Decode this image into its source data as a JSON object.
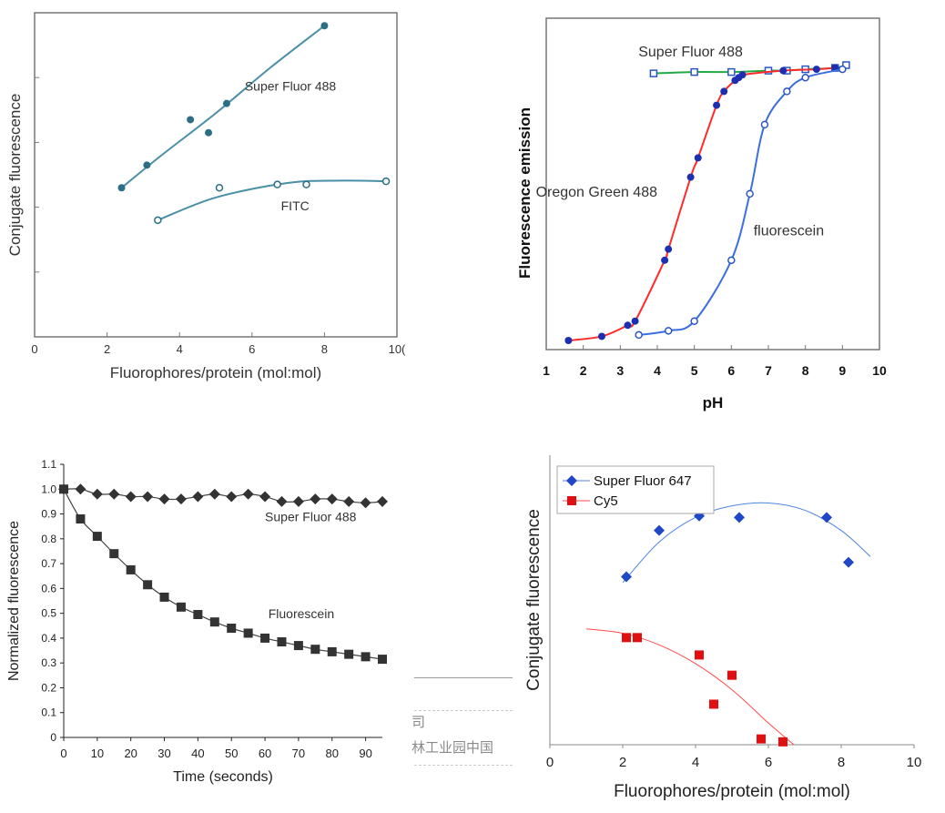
{
  "chart_data": [
    {
      "type": "scatter",
      "xlabel": "Fluorophores/protein (mol:mol)",
      "ylabel": "Conjugate fluorescence",
      "xlim": [
        0,
        10
      ],
      "ylim": [
        0,
        10
      ],
      "x_ticks": [
        "0",
        "2",
        "4",
        "6",
        "8",
        "10("
      ],
      "grid": false,
      "series": [
        {
          "name": "Super Fluor 488",
          "marker": "filled-circle",
          "color": "#2b6f86",
          "line_color": "#4a8fa6",
          "points": [
            [
              2.4,
              4.6
            ],
            [
              3.1,
              5.3
            ],
            [
              4.3,
              6.7
            ],
            [
              4.8,
              6.3
            ],
            [
              5.3,
              7.2
            ],
            [
              8.0,
              9.6
            ]
          ],
          "fit": [
            [
              2.4,
              4.6
            ],
            [
              3.5,
              5.6
            ],
            [
              5.0,
              6.9
            ],
            [
              6.5,
              8.3
            ],
            [
              8.0,
              9.6
            ]
          ]
        },
        {
          "name": "FITC",
          "marker": "open-circle",
          "color": "#2b6f86",
          "line_color": "#4a8fa6",
          "points": [
            [
              3.4,
              3.6
            ],
            [
              5.1,
              4.6
            ],
            [
              6.7,
              4.7
            ],
            [
              7.5,
              4.7
            ],
            [
              9.7,
              4.8
            ]
          ],
          "fit": [
            [
              3.4,
              3.6
            ],
            [
              5.0,
              4.3
            ],
            [
              7.0,
              4.75
            ],
            [
              8.5,
              4.82
            ],
            [
              9.7,
              4.8
            ]
          ]
        }
      ]
    },
    {
      "type": "line",
      "xlabel": "pH",
      "ylabel": "Fluorescence emission",
      "xlim": [
        1,
        10
      ],
      "ylim": [
        0,
        10
      ],
      "x_ticks": [
        "1",
        "2",
        "3",
        "4",
        "5",
        "6",
        "7",
        "8",
        "9",
        "10"
      ],
      "grid": false,
      "series": [
        {
          "name": "Super Fluor 488",
          "marker": "open-square",
          "color": "#2a55c4",
          "line_color": "#22aa44",
          "points": [
            [
              3.9,
              9.65
            ],
            [
              5.0,
              9.7
            ],
            [
              6.0,
              9.7
            ],
            [
              7.0,
              9.75
            ],
            [
              7.5,
              9.75
            ],
            [
              8.0,
              9.8
            ],
            [
              8.8,
              9.85
            ],
            [
              9.1,
              9.95
            ]
          ]
        },
        {
          "name": "Oregon Green 488",
          "marker": "filled-circle",
          "color": "#1d2fb0",
          "line_color": "#ff2a2a",
          "points": [
            [
              1.6,
              0.0
            ],
            [
              2.5,
              0.15
            ],
            [
              3.2,
              0.55
            ],
            [
              3.4,
              0.7
            ],
            [
              4.2,
              2.9
            ],
            [
              4.3,
              3.3
            ],
            [
              4.9,
              5.9
            ],
            [
              5.1,
              6.6
            ],
            [
              5.6,
              8.5
            ],
            [
              5.8,
              9.0
            ],
            [
              6.1,
              9.4
            ],
            [
              6.2,
              9.5
            ],
            [
              6.3,
              9.6
            ],
            [
              7.4,
              9.75
            ],
            [
              8.3,
              9.8
            ],
            [
              8.8,
              9.85
            ]
          ]
        },
        {
          "name": "fluorescein",
          "marker": "open-circle",
          "color": "#2a55c4",
          "line_color": "#3b6fe0",
          "points": [
            [
              3.5,
              0.2
            ],
            [
              4.3,
              0.35
            ],
            [
              5.0,
              0.7
            ],
            [
              6.0,
              2.9
            ],
            [
              6.5,
              5.3
            ],
            [
              6.9,
              7.8
            ],
            [
              7.5,
              9.0
            ],
            [
              8.0,
              9.5
            ],
            [
              9.0,
              9.8
            ]
          ]
        }
      ]
    },
    {
      "type": "line",
      "xlabel": "Time (seconds)",
      "ylabel": "Normalized fluorescence",
      "xlim": [
        0,
        95
      ],
      "ylim": [
        0,
        1.1
      ],
      "x_ticks": [
        0,
        10,
        20,
        30,
        40,
        50,
        60,
        70,
        80,
        90
      ],
      "y_ticks": [
        "0",
        "0.1",
        "0.2",
        "0.3",
        "0.4",
        "0.5",
        "0.6",
        "0.7",
        "0.8",
        "0.9",
        "1.0",
        "1.1"
      ],
      "grid": false,
      "series": [
        {
          "name": "Super Fluor 488",
          "marker": "diamond",
          "color": "#333333",
          "x": [
            0,
            5,
            10,
            15,
            20,
            25,
            30,
            35,
            40,
            45,
            50,
            55,
            60,
            65,
            70,
            75,
            80,
            85,
            90,
            95
          ],
          "values": [
            1.0,
            1.0,
            0.98,
            0.98,
            0.97,
            0.97,
            0.96,
            0.96,
            0.97,
            0.98,
            0.97,
            0.98,
            0.97,
            0.95,
            0.95,
            0.96,
            0.96,
            0.95,
            0.945,
            0.95
          ]
        },
        {
          "name": "Fluorescein",
          "marker": "square",
          "color": "#333333",
          "x": [
            0,
            5,
            10,
            15,
            20,
            25,
            30,
            35,
            40,
            45,
            50,
            55,
            60,
            65,
            70,
            75,
            80,
            85,
            90,
            95
          ],
          "values": [
            1.0,
            0.88,
            0.81,
            0.74,
            0.675,
            0.615,
            0.565,
            0.525,
            0.495,
            0.465,
            0.44,
            0.42,
            0.4,
            0.385,
            0.37,
            0.355,
            0.345,
            0.335,
            0.325,
            0.315
          ]
        }
      ]
    },
    {
      "type": "scatter",
      "xlabel": "Fluorophores/protein (mol:mol)",
      "ylabel": "Conjugate fluorescence",
      "xlim": [
        0,
        10
      ],
      "ylim": [
        0,
        10
      ],
      "x_ticks": [
        0,
        2,
        4,
        6,
        8,
        10
      ],
      "legend_position": "top-left",
      "legend": [
        "Super Fluor 647",
        "Cy5"
      ],
      "grid": false,
      "series": [
        {
          "name": "Super Fluor 647",
          "marker": "diamond",
          "color": "#1f47c8",
          "line_color": "#4e86e0",
          "points": [
            [
              2.1,
              5.8
            ],
            [
              3.0,
              7.4
            ],
            [
              4.1,
              7.9
            ],
            [
              5.2,
              7.85
            ],
            [
              7.6,
              7.85
            ],
            [
              8.2,
              6.3
            ]
          ],
          "fit": [
            [
              2.0,
              5.6
            ],
            [
              3.0,
              7.0
            ],
            [
              4.0,
              7.85
            ],
            [
              5.0,
              8.25
            ],
            [
              6.0,
              8.35
            ],
            [
              7.0,
              8.1
            ],
            [
              8.0,
              7.4
            ],
            [
              8.8,
              6.5
            ]
          ]
        },
        {
          "name": "Cy5",
          "marker": "square",
          "color": "#e01010",
          "line_color": "#ff4a4a",
          "points": [
            [
              2.1,
              3.7
            ],
            [
              2.4,
              3.7
            ],
            [
              4.1,
              3.1
            ],
            [
              5.0,
              2.4
            ],
            [
              4.5,
              1.4
            ],
            [
              5.8,
              0.2
            ],
            [
              6.4,
              0.1
            ]
          ],
          "fit": [
            [
              1.0,
              4.0
            ],
            [
              2.0,
              3.85
            ],
            [
              3.0,
              3.45
            ],
            [
              4.0,
              2.8
            ],
            [
              5.0,
              1.9
            ],
            [
              6.0,
              0.75
            ],
            [
              6.7,
              0.0
            ]
          ]
        }
      ]
    }
  ],
  "stray_text": {
    "line1": "司",
    "line2": "林工业园中国"
  }
}
